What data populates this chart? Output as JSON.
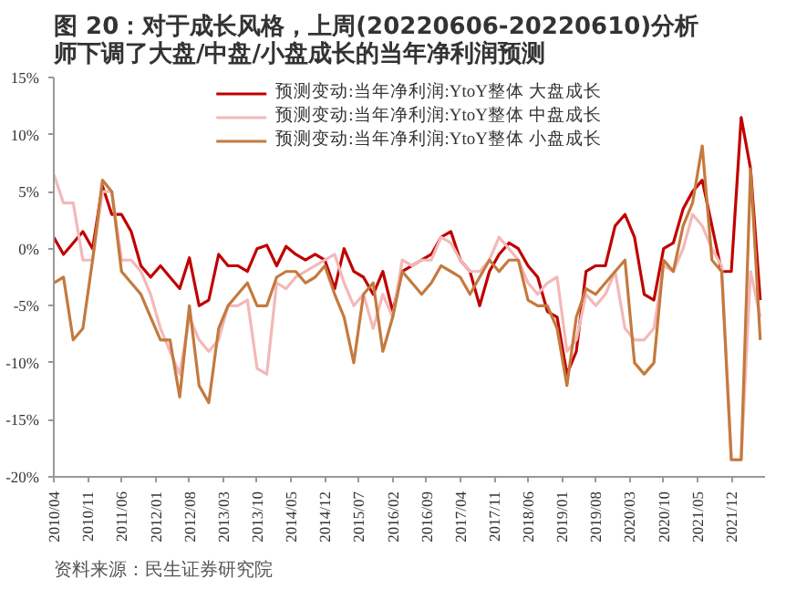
{
  "chart_data": {
    "type": "line",
    "title": "图 20：对于成长风格，上周(20220606-20220610)分析师下调了大盘/中盘/小盘成长的当年净利润预测",
    "annotations": [
      "资料来源：民生证券研究院"
    ],
    "x": [
      "2010-04",
      "2010-06",
      "2010-08",
      "2010-10",
      "2010-12",
      "2011-02",
      "2011-04",
      "2011-06",
      "2011-08",
      "2011-10",
      "2011-12",
      "2012-02",
      "2012-04",
      "2012-06",
      "2012-08",
      "2012-10",
      "2012-12",
      "2013-02",
      "2013-04",
      "2013-06",
      "2013-08",
      "2013-10",
      "2013-12",
      "2014-02",
      "2014-04",
      "2014-06",
      "2014-08",
      "2014-10",
      "2014-12",
      "2015-02",
      "2015-04",
      "2015-06",
      "2015-08",
      "2015-10",
      "2015-12",
      "2016-02",
      "2016-04",
      "2016-06",
      "2016-08",
      "2016-10",
      "2016-12",
      "2017-02",
      "2017-04",
      "2017-06",
      "2017-08",
      "2017-10",
      "2017-12",
      "2018-02",
      "2018-04",
      "2018-06",
      "2018-08",
      "2018-10",
      "2018-12",
      "2019-02",
      "2019-04",
      "2019-06",
      "2019-08",
      "2019-10",
      "2019-12",
      "2020-02",
      "2020-04",
      "2020-06",
      "2020-08",
      "2020-10",
      "2020-12",
      "2021-02",
      "2021-04",
      "2021-06",
      "2021-08",
      "2021-10",
      "2021-12",
      "2022-02",
      "2022-04",
      "2022-06"
    ],
    "series": [
      {
        "name": "预测变动:当年净利润:YtoY整体 大盘成长",
        "color": "#c00000",
        "values": [
          1.0,
          -0.5,
          0.5,
          1.5,
          0,
          5.5,
          3,
          3,
          1.5,
          -1.5,
          -2.5,
          -1.5,
          -2.5,
          -3.5,
          -0.8,
          -5,
          -4.5,
          -0.5,
          -1.5,
          -1.5,
          -2,
          0,
          0.3,
          -1.5,
          0.2,
          -0.5,
          -1,
          -0.5,
          -1,
          -3.5,
          0,
          -2,
          -2.5,
          -4,
          -2,
          -5.5,
          -2,
          -1.5,
          -1,
          -0.5,
          1,
          1.5,
          -1,
          -2,
          -5,
          -2,
          -0.5,
          0.5,
          0,
          -1.5,
          -2.5,
          -5.5,
          -6,
          -11,
          -9,
          -2,
          -1.5,
          -1.5,
          2,
          3,
          1,
          -4,
          -4.5,
          0,
          0.5,
          3.5,
          5,
          6,
          2,
          -2,
          -2,
          11.5,
          7,
          -4.5
        ]
      },
      {
        "name": "预测变动:当年净利润:YtoY整体 中盘成长",
        "color": "#f4b8b8",
        "values": [
          6.5,
          4,
          4,
          -1,
          -1,
          5,
          5,
          -1,
          -1,
          -2,
          -4,
          -7,
          -9,
          -11,
          -6,
          -8,
          -9,
          -8,
          -5,
          -5,
          -4.5,
          -10.5,
          -11,
          -3,
          -3.5,
          -2.5,
          -2,
          -1.5,
          -1,
          -0.5,
          -3,
          -5,
          -4,
          -7,
          -4,
          -6,
          -1,
          -1.5,
          -1,
          -1,
          1,
          0.5,
          -1,
          -2,
          -2,
          -1,
          1,
          0,
          -1,
          -3,
          -4,
          -3,
          -2.5,
          -9,
          -8,
          -4,
          -5,
          -4,
          -2,
          -7,
          -8,
          -8,
          -7,
          -1.5,
          -2,
          0,
          3,
          2,
          0,
          -1.5,
          -18.5,
          -18.5,
          -2,
          -6
        ]
      },
      {
        "name": "预测变动:当年净利润:YtoY整体 小盘成长",
        "color": "#c47a3e",
        "values": [
          -3,
          -2.5,
          -8,
          -7,
          -1,
          6,
          5,
          -2,
          -3,
          -4,
          -6,
          -8,
          -8,
          -13,
          -5,
          -12,
          -13.5,
          -7,
          -5,
          -4,
          -3,
          -5,
          -5,
          -2.5,
          -2,
          -2,
          -3,
          -2.5,
          -1.5,
          -4,
          -6,
          -10,
          -4,
          -3,
          -9,
          -6,
          -2,
          -3,
          -4,
          -3,
          -1.5,
          -2,
          -2.5,
          -4,
          -2.5,
          -1,
          -2,
          -1,
          -1,
          -4.5,
          -5,
          -5,
          -7,
          -12,
          -6,
          -3.5,
          -4,
          -3,
          -2,
          -1,
          -10,
          -11,
          -10,
          -1,
          -2,
          2,
          4,
          9,
          -1,
          -2,
          -18.5,
          -18.5,
          7,
          -8
        ]
      }
    ],
    "xlim": [
      "2010-04",
      "2022-07"
    ],
    "xticks": [
      {
        "value": "2010-04",
        "label": "2010/04"
      },
      {
        "value": "2010-11",
        "label": "2010/11"
      },
      {
        "value": "2011-06",
        "label": "2011/06"
      },
      {
        "value": "2012-01",
        "label": "2012/01"
      },
      {
        "value": "2012-08",
        "label": "2012/08"
      },
      {
        "value": "2013-03",
        "label": "2013/03"
      },
      {
        "value": "2013-10",
        "label": "2013/10"
      },
      {
        "value": "2014-05",
        "label": "2014/05"
      },
      {
        "value": "2014-12",
        "label": "2014/12"
      },
      {
        "value": "2015-07",
        "label": "2015/07"
      },
      {
        "value": "2016-02",
        "label": "2016/02"
      },
      {
        "value": "2016-09",
        "label": "2016/09"
      },
      {
        "value": "2017-04",
        "label": "2017/04"
      },
      {
        "value": "2017-11",
        "label": "2017/11"
      },
      {
        "value": "2018-06",
        "label": "2018/06"
      },
      {
        "value": "2019-01",
        "label": "2019/01"
      },
      {
        "value": "2019-08",
        "label": "2019/08"
      },
      {
        "value": "2020-03",
        "label": "2020/03"
      },
      {
        "value": "2020-10",
        "label": "2020/10"
      },
      {
        "value": "2021-05",
        "label": "2021/05"
      },
      {
        "value": "2021-12",
        "label": "2021/12"
      }
    ],
    "ylim": [
      -20,
      15
    ],
    "yticks": [
      {
        "value": -20,
        "label": "-20%"
      },
      {
        "value": -15,
        "label": "-15%"
      },
      {
        "value": -10,
        "label": "-10%"
      },
      {
        "value": -5,
        "label": "-5%"
      },
      {
        "value": 0,
        "label": "0%"
      },
      {
        "value": 5,
        "label": "5%"
      },
      {
        "value": 10,
        "label": "10%"
      },
      {
        "value": 15,
        "label": "15%"
      }
    ],
    "grid": false,
    "legend": "top",
    "marker": "none",
    "line_style": "solid"
  }
}
